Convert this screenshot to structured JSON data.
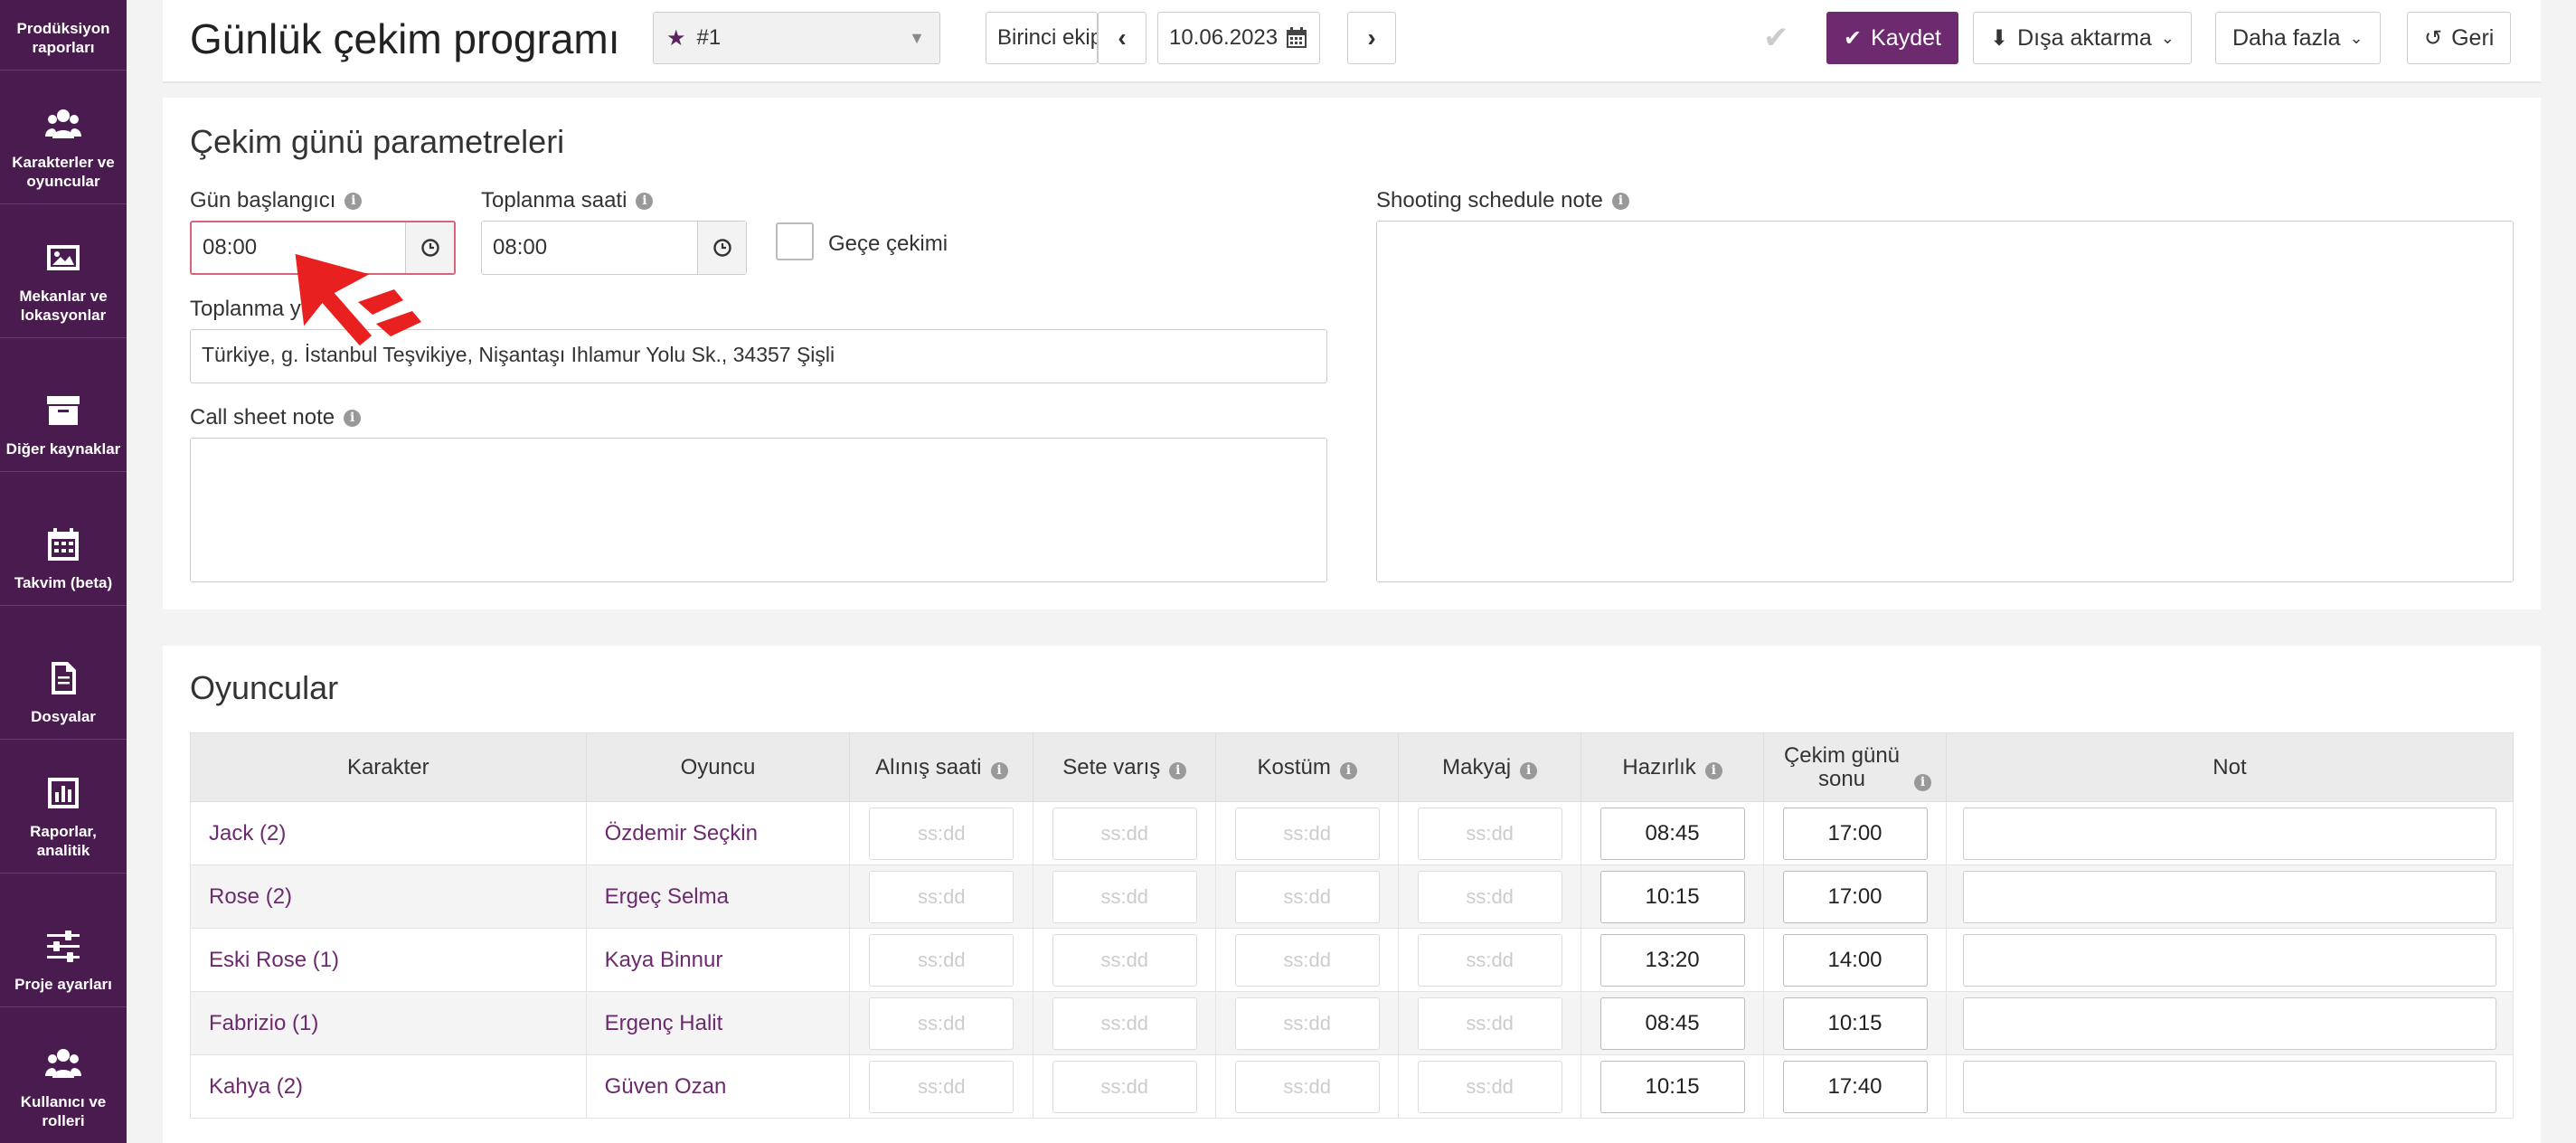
{
  "sidebar": {
    "items": [
      {
        "label": "Prodüksiyon raporları",
        "icon": "report-icon"
      },
      {
        "label": "Karakterler ve oyuncular",
        "icon": "users-icon"
      },
      {
        "label": "Mekanlar ve lokasyonlar",
        "icon": "image-icon"
      },
      {
        "label": "Diğer kaynaklar",
        "icon": "archive-icon"
      },
      {
        "label": "Takvim (beta)",
        "icon": "calendar-icon"
      },
      {
        "label": "Dosyalar",
        "icon": "file-icon"
      },
      {
        "label": "Raporlar, analitik",
        "icon": "chart-icon"
      },
      {
        "label": "Proje ayarları",
        "icon": "sliders-icon"
      },
      {
        "label": "Kullanıcı ve rolleri",
        "icon": "users-icon"
      }
    ]
  },
  "header": {
    "title": "Günlük çekim programı",
    "version": "#1",
    "team": "Birinci ekip",
    "date": "10.06.2023",
    "prev": "‹",
    "next": "›",
    "save_label": "Kaydet",
    "export_label": "Dışa aktarma",
    "more_label": "Daha fazla",
    "back_label": "Geri"
  },
  "params": {
    "title": "Çekim günü parametreleri",
    "day_start_label": "Gün başlangıcı",
    "day_start_value": "08:00",
    "gathering_time_label": "Toplanma saati",
    "gathering_time_value": "08:00",
    "night_shoot_label": "Geçe çekimi",
    "gathering_place_label": "Toplanma y",
    "gathering_place_value": "Türkiye, g. İstanbul Teşvikiye, Nişantaşı Ihlamur Yolu Sk., 34357 Şişli",
    "call_sheet_note_label": "Call sheet note",
    "schedule_note_label": "Shooting schedule note"
  },
  "actors": {
    "title": "Oyuncular",
    "columns": [
      "Karakter",
      "Oyuncu",
      "Alınış saati",
      "Sete varış",
      "Kostüm",
      "Makyaj",
      "Hazırlık",
      "Çekim günü sonu",
      "Not"
    ],
    "placeholder": "ss:dd",
    "rows": [
      {
        "character": "Jack (2)",
        "actor": "Özdemir Seçkin",
        "prep": "08:45",
        "end": "17:00"
      },
      {
        "character": "Rose (2)",
        "actor": "Ergeç Selma",
        "prep": "10:15",
        "end": "17:00"
      },
      {
        "character": "Eski Rose (1)",
        "actor": "Kaya Binnur",
        "prep": "13:20",
        "end": "14:00"
      },
      {
        "character": "Fabrizio (1)",
        "actor": "Ergenç Halit",
        "prep": "08:45",
        "end": "10:15"
      },
      {
        "character": "Kahya (2)",
        "actor": "Güven Ozan",
        "prep": "10:15",
        "end": "17:40"
      }
    ]
  },
  "colors": {
    "sidebar_bg": "#4a1b4e",
    "accent": "#6d2a6e",
    "cursor_arrow": "#e8201f"
  }
}
